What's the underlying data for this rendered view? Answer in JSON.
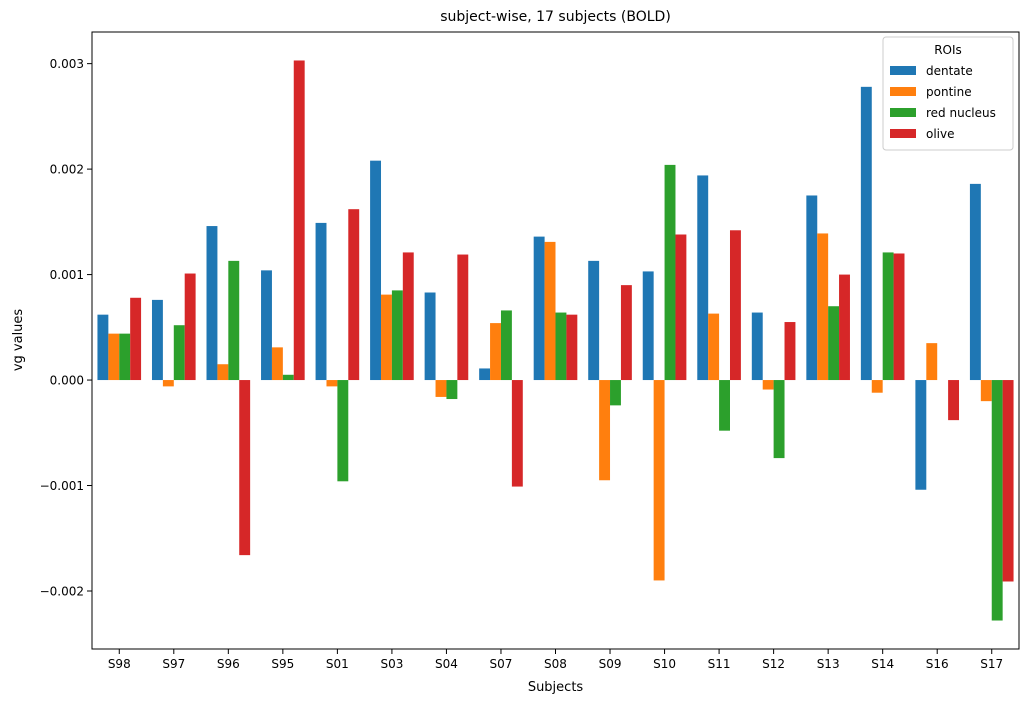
{
  "chart_data": {
    "type": "bar",
    "title": "subject-wise, 17 subjects (BOLD)",
    "xlabel": "Subjects",
    "ylabel": "vg values",
    "ylim": [
      -0.00255,
      0.0033
    ],
    "yticks": [
      -0.002,
      -0.001,
      0.0,
      0.001,
      0.002,
      0.003
    ],
    "ytick_labels": [
      "−0.002",
      "−0.001",
      "0.000",
      "0.001",
      "0.002",
      "0.003"
    ],
    "grid": false,
    "legend": {
      "title": "ROIs",
      "placement": "top-right"
    },
    "categories": [
      "S98",
      "S97",
      "S96",
      "S95",
      "S01",
      "S03",
      "S04",
      "S07",
      "S08",
      "S09",
      "S10",
      "S11",
      "S12",
      "S13",
      "S14",
      "S16",
      "S17"
    ],
    "series": [
      {
        "name": "dentate",
        "color": "#1f77b4",
        "values": [
          0.00062,
          0.00076,
          0.00146,
          0.00104,
          0.00149,
          0.00208,
          0.00083,
          0.00011,
          0.00136,
          0.00113,
          0.00103,
          0.00194,
          0.00064,
          0.00175,
          0.00278,
          -0.00104,
          0.00186
        ]
      },
      {
        "name": "pontine",
        "color": "#ff7f0e",
        "values": [
          0.00044,
          -6e-05,
          0.00015,
          0.00031,
          -6e-05,
          0.00081,
          -0.00016,
          0.00054,
          0.00131,
          -0.00095,
          -0.0019,
          0.00063,
          -9e-05,
          0.00139,
          -0.00012,
          0.00035,
          -0.0002
        ]
      },
      {
        "name": "red nucleus",
        "color": "#2ca02c",
        "values": [
          0.00044,
          0.00052,
          0.00113,
          5e-05,
          -0.00096,
          0.00085,
          -0.00018,
          0.00066,
          0.00064,
          -0.00024,
          0.00204,
          -0.00048,
          -0.00074,
          0.0007,
          0.00121,
          0.0,
          -0.00228
        ]
      },
      {
        "name": "olive",
        "color": "#d62728",
        "values": [
          0.00078,
          0.00101,
          -0.00166,
          0.00303,
          0.00162,
          0.00121,
          0.00119,
          -0.00101,
          0.00062,
          0.0009,
          0.00138,
          0.00142,
          0.00055,
          0.001,
          0.0012,
          -0.00038,
          -0.00191
        ]
      }
    ]
  }
}
